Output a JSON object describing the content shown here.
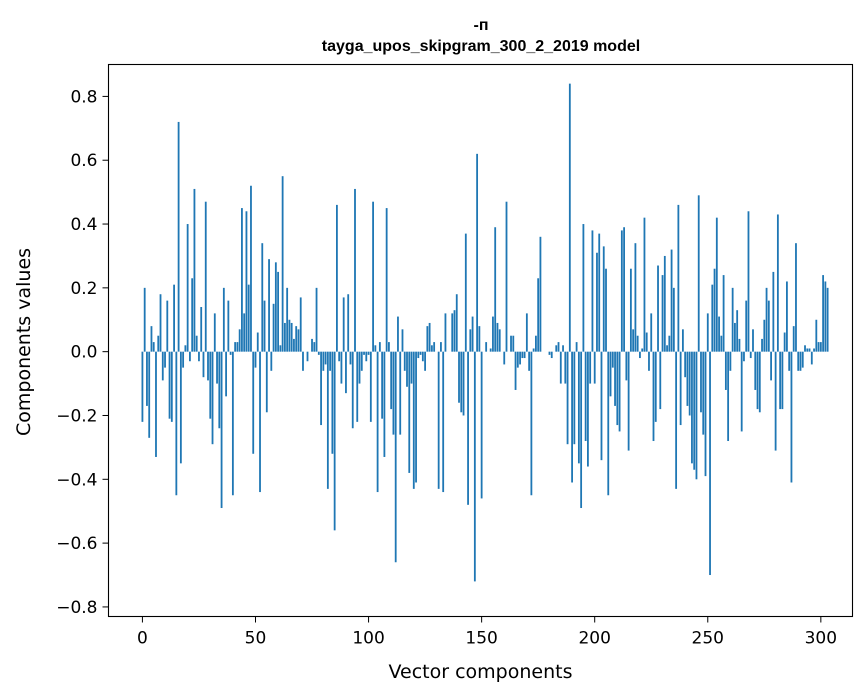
{
  "chart_data": {
    "type": "bar",
    "title_line1": "-п",
    "title_line2": "tayga_upos_skipgram_300_2_2019 model",
    "xlabel": "Vector components",
    "ylabel": "Components values",
    "xlim": [
      -15,
      314
    ],
    "ylim": [
      -0.83,
      0.9
    ],
    "xticks": [
      0,
      50,
      100,
      150,
      200,
      250,
      300
    ],
    "xtick_labels": [
      "0",
      "50",
      "100",
      "150",
      "200",
      "250",
      "300"
    ],
    "yticks": [
      -0.8,
      -0.6,
      -0.4,
      -0.2,
      0.0,
      0.2,
      0.4,
      0.6,
      0.8
    ],
    "ytick_labels": [
      "−0.8",
      "−0.6",
      "−0.4",
      "−0.2",
      "0.0",
      "0.2",
      "0.4",
      "0.6",
      "0.8"
    ],
    "bar_color": "#1f77b4",
    "values": [
      -0.22,
      0.2,
      -0.17,
      -0.27,
      0.08,
      0.03,
      -0.33,
      0.05,
      0.18,
      -0.09,
      -0.05,
      0.16,
      -0.21,
      -0.22,
      0.21,
      -0.45,
      0.72,
      -0.35,
      -0.05,
      0.02,
      0.4,
      -0.03,
      0.23,
      0.51,
      0.05,
      -0.03,
      0.14,
      -0.08,
      0.47,
      -0.09,
      -0.21,
      -0.29,
      0.12,
      -0.1,
      -0.24,
      -0.49,
      0.2,
      -0.14,
      0.16,
      -0.01,
      -0.45,
      0.03,
      0.03,
      0.07,
      0.45,
      0.12,
      0.44,
      0.21,
      0.52,
      -0.32,
      -0.05,
      0.06,
      -0.44,
      0.34,
      0.16,
      -0.19,
      0.29,
      -0.06,
      0.15,
      0.28,
      0.25,
      0.02,
      0.55,
      0.09,
      0.2,
      0.1,
      0.09,
      0.04,
      0.08,
      0.07,
      0.17,
      -0.06,
      0.0,
      -0.03,
      0.0,
      0.04,
      0.03,
      0.2,
      -0.01,
      -0.23,
      -0.06,
      -0.04,
      -0.43,
      -0.06,
      -0.32,
      -0.56,
      0.46,
      -0.03,
      -0.1,
      0.17,
      -0.13,
      0.18,
      -0.04,
      -0.24,
      0.51,
      -0.22,
      -0.1,
      -0.06,
      -0.01,
      -0.03,
      -0.01,
      -0.22,
      0.47,
      0.02,
      -0.44,
      0.03,
      -0.21,
      -0.33,
      0.45,
      0.03,
      -0.18,
      -0.26,
      -0.66,
      0.11,
      -0.26,
      0.07,
      -0.06,
      -0.11,
      -0.38,
      -0.1,
      -0.43,
      -0.41,
      -0.02,
      -0.01,
      -0.03,
      -0.06,
      0.08,
      0.09,
      0.02,
      0.03,
      0.0,
      -0.43,
      0.03,
      -0.44,
      0.12,
      0.0,
      0.0,
      0.12,
      0.13,
      0.18,
      -0.16,
      -0.19,
      -0.2,
      0.37,
      -0.48,
      0.07,
      0.11,
      -0.72,
      0.62,
      0.08,
      -0.46,
      0.0,
      0.03,
      0.0,
      0.01,
      0.11,
      0.39,
      0.09,
      0.07,
      0.0,
      -0.04,
      0.47,
      0.0,
      0.05,
      0.05,
      -0.12,
      -0.05,
      -0.04,
      -0.02,
      -0.02,
      0.12,
      -0.06,
      -0.45,
      0.01,
      0.05,
      0.23,
      0.36,
      0.0,
      0.0,
      0.0,
      -0.01,
      -0.02,
      0.0,
      0.02,
      0.03,
      -0.1,
      0.02,
      -0.1,
      -0.29,
      0.84,
      -0.41,
      -0.29,
      0.03,
      -0.35,
      -0.49,
      0.4,
      -0.28,
      -0.36,
      -0.1,
      0.38,
      -0.1,
      0.31,
      0.37,
      -0.34,
      0.33,
      0.26,
      -0.45,
      -0.14,
      -0.05,
      -0.17,
      -0.23,
      -0.25,
      0.38,
      0.39,
      -0.09,
      -0.31,
      0.26,
      0.07,
      0.34,
      0.05,
      -0.02,
      0.01,
      0.42,
      0.06,
      -0.06,
      0.12,
      -0.28,
      -0.22,
      0.27,
      -0.18,
      0.24,
      0.3,
      0.02,
      0.05,
      0.32,
      0.2,
      -0.43,
      0.46,
      -0.23,
      0.07,
      -0.08,
      -0.17,
      -0.2,
      -0.35,
      -0.37,
      -0.4,
      0.49,
      -0.19,
      -0.26,
      -0.39,
      0.12,
      -0.7,
      0.21,
      0.26,
      0.42,
      0.11,
      0.05,
      0.24,
      -0.12,
      -0.28,
      -0.06,
      0.2,
      0.09,
      0.13,
      0.04,
      -0.25,
      -0.03,
      0.16,
      0.44,
      -0.02,
      0.07,
      -0.12,
      -0.18,
      -0.19,
      0.04,
      0.1,
      0.2,
      0.16,
      -0.09,
      0.25,
      -0.31,
      0.43,
      -0.18,
      -0.18,
      0.06,
      0.22,
      -0.06,
      -0.41,
      0.08,
      0.34,
      -0.06,
      -0.06,
      -0.05,
      0.02,
      0.01,
      0.01,
      -0.04,
      0.01,
      0.1,
      0.03,
      0.03,
      0.24,
      0.22,
      0.2
    ]
  }
}
